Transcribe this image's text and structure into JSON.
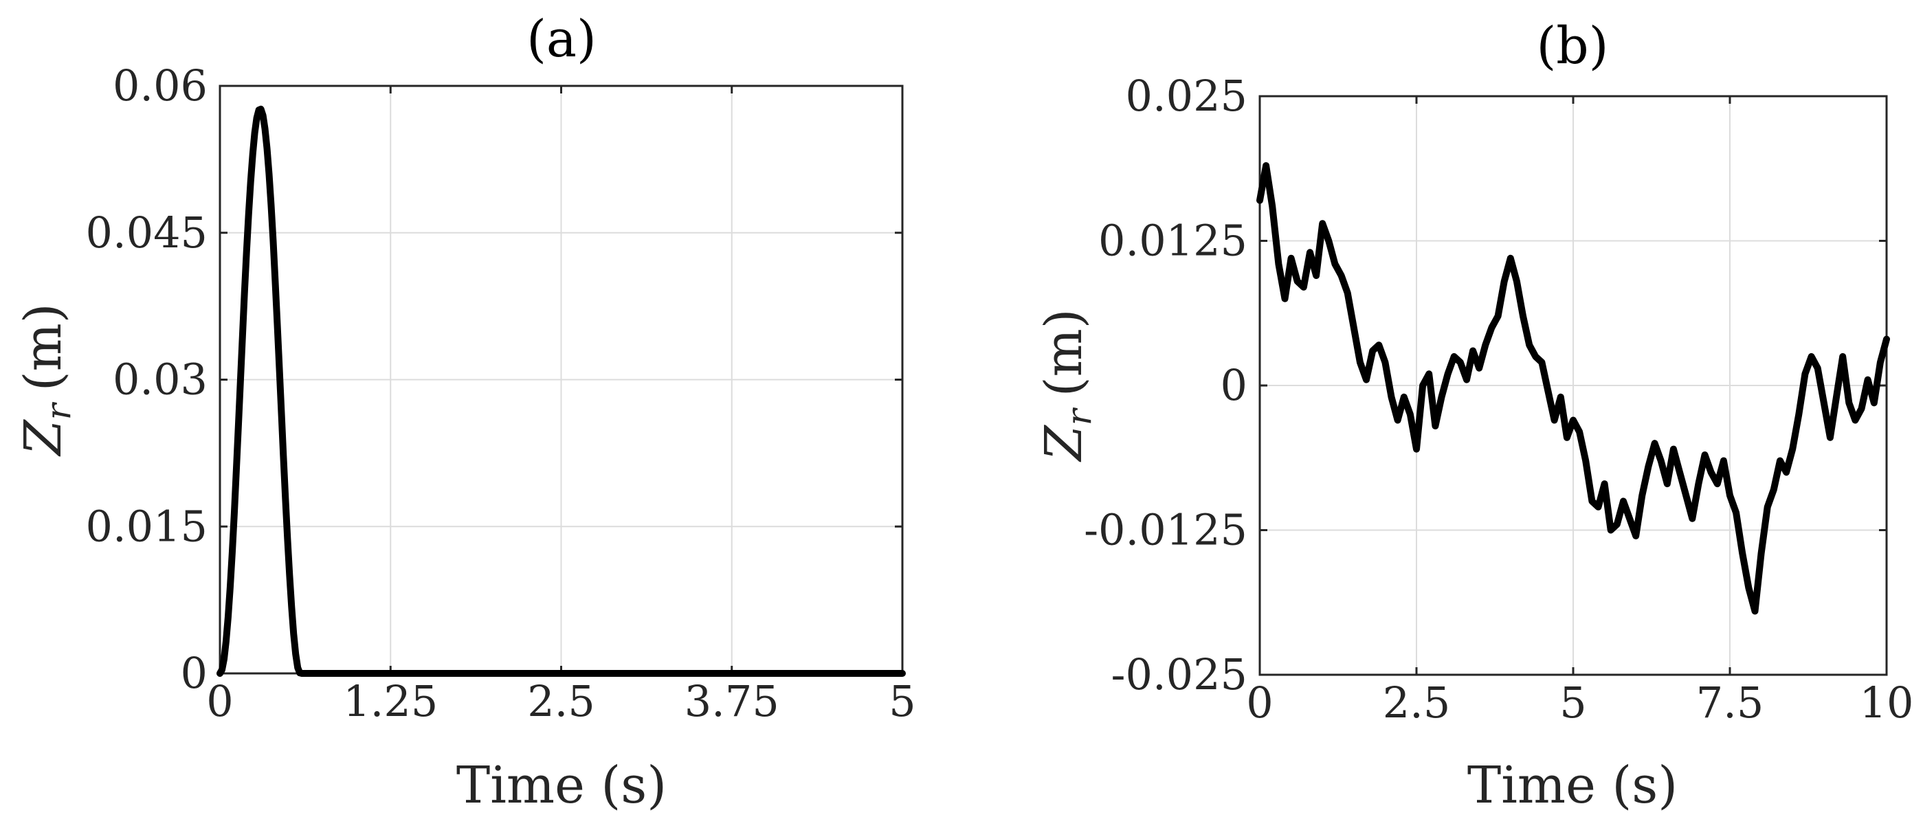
{
  "chart_data": [
    {
      "type": "line",
      "title": "(a)",
      "xlabel": "Time (s)",
      "ylabel_main": "Z",
      "ylabel_sub": "r",
      "ylabel_unit": "(m)",
      "xlim": [
        0,
        5
      ],
      "ylim": [
        0,
        0.06
      ],
      "xticks": [
        0,
        1.25,
        2.5,
        3.75,
        5
      ],
      "xtick_labels": [
        "0",
        "1.25",
        "2.5",
        "3.75",
        "5"
      ],
      "yticks": [
        0,
        0.015,
        0.03,
        0.045,
        0.06
      ],
      "ytick_labels": [
        "0",
        "0.015",
        "0.03",
        "0.045",
        "0.06"
      ],
      "grid": true,
      "series": [
        {
          "x": [
            0,
            0.015,
            0.03,
            0.045,
            0.06,
            0.075,
            0.09,
            0.105,
            0.12,
            0.135,
            0.15,
            0.165,
            0.18,
            0.195,
            0.21,
            0.225,
            0.24,
            0.255,
            0.27,
            0.285,
            0.3,
            0.315,
            0.33,
            0.345,
            0.36,
            0.375,
            0.39,
            0.405,
            0.42,
            0.435,
            0.45,
            0.465,
            0.48,
            0.495,
            0.51,
            0.525,
            0.54,
            0.555,
            0.57,
            0.585,
            0.6,
            0.8,
            1.25,
            2.5,
            3.75,
            5
          ],
          "y": [
            0,
            0.00037,
            0.00146,
            0.00327,
            0.00573,
            0.00879,
            0.01235,
            0.01635,
            0.02065,
            0.02518,
            0.02979,
            0.03438,
            0.03883,
            0.04302,
            0.04684,
            0.0502,
            0.05301,
            0.05521,
            0.05673,
            0.05754,
            0.05763,
            0.05699,
            0.05564,
            0.05362,
            0.05098,
            0.04779,
            0.04414,
            0.0401,
            0.03577,
            0.03129,
            0.02673,
            0.02225,
            0.01788,
            0.01379,
            0.01006,
            0.00678,
            0.00406,
            0.00197,
            0.00058,
            5e-05,
            0,
            0,
            0,
            0,
            0,
            0
          ]
        }
      ]
    },
    {
      "type": "line",
      "title": "(b)",
      "xlabel": "Time (s)",
      "ylabel_main": "Z",
      "ylabel_sub": "r",
      "ylabel_unit": "(m)",
      "xlim": [
        0,
        10
      ],
      "ylim": [
        -0.025,
        0.025
      ],
      "xticks": [
        0,
        2.5,
        5,
        7.5,
        10
      ],
      "xtick_labels": [
        "0",
        "2.5",
        "5",
        "7.5",
        "10"
      ],
      "yticks": [
        -0.025,
        -0.0125,
        0,
        0.0125,
        0.025
      ],
      "ytick_labels": [
        "-0.025",
        "-0.0125",
        "0",
        "0.0125",
        "0.025"
      ],
      "grid": true,
      "series": [
        {
          "x": [
            0,
            0.1,
            0.2,
            0.3,
            0.4,
            0.5,
            0.6,
            0.7,
            0.8,
            0.9,
            1.0,
            1.1,
            1.2,
            1.3,
            1.4,
            1.5,
            1.6,
            1.7,
            1.8,
            1.9,
            2.0,
            2.1,
            2.2,
            2.3,
            2.4,
            2.5,
            2.6,
            2.7,
            2.8,
            2.9,
            3.0,
            3.1,
            3.2,
            3.3,
            3.4,
            3.5,
            3.6,
            3.7,
            3.8,
            3.9,
            4.0,
            4.1,
            4.2,
            4.3,
            4.4,
            4.5,
            4.6,
            4.7,
            4.8,
            4.9,
            5.0,
            5.1,
            5.2,
            5.3,
            5.4,
            5.5,
            5.6,
            5.7,
            5.8,
            5.9,
            6.0,
            6.1,
            6.2,
            6.3,
            6.4,
            6.5,
            6.6,
            6.7,
            6.8,
            6.9,
            7.0,
            7.1,
            7.2,
            7.3,
            7.4,
            7.5,
            7.6,
            7.7,
            7.8,
            7.9,
            8.0,
            8.1,
            8.2,
            8.3,
            8.4,
            8.5,
            8.6,
            8.7,
            8.8,
            8.9,
            9.0,
            9.1,
            9.2,
            9.3,
            9.4,
            9.5,
            9.6,
            9.7,
            9.8,
            9.9,
            10.0
          ],
          "y": [
            0.016,
            0.019,
            0.0155,
            0.0105,
            0.0075,
            0.011,
            0.009,
            0.0085,
            0.0115,
            0.0095,
            0.014,
            0.0125,
            0.0105,
            0.0095,
            0.008,
            0.005,
            0.002,
            0.0005,
            0.003,
            0.0035,
            0.002,
            -0.001,
            -0.003,
            -0.001,
            -0.0025,
            -0.0055,
            0.0,
            0.001,
            -0.0035,
            -0.001,
            0.001,
            0.0025,
            0.002,
            0.0005,
            0.003,
            0.0015,
            0.0035,
            0.005,
            0.006,
            0.009,
            0.011,
            0.009,
            0.006,
            0.0035,
            0.0025,
            0.002,
            -0.0005,
            -0.003,
            -0.001,
            -0.0045,
            -0.003,
            -0.004,
            -0.0065,
            -0.01,
            -0.0105,
            -0.0085,
            -0.0125,
            -0.012,
            -0.01,
            -0.0115,
            -0.013,
            -0.0095,
            -0.007,
            -0.005,
            -0.0065,
            -0.0085,
            -0.0055,
            -0.0075,
            -0.0095,
            -0.0115,
            -0.0085,
            -0.006,
            -0.0075,
            -0.0085,
            -0.0065,
            -0.0095,
            -0.011,
            -0.0145,
            -0.0175,
            -0.0195,
            -0.0145,
            -0.0105,
            -0.009,
            -0.0065,
            -0.0075,
            -0.0055,
            -0.0025,
            0.001,
            0.0025,
            0.0015,
            -0.0015,
            -0.0045,
            -0.001,
            0.0025,
            -0.0015,
            -0.003,
            -0.002,
            0.0005,
            -0.0015,
            0.002,
            0.004
          ]
        }
      ]
    }
  ]
}
